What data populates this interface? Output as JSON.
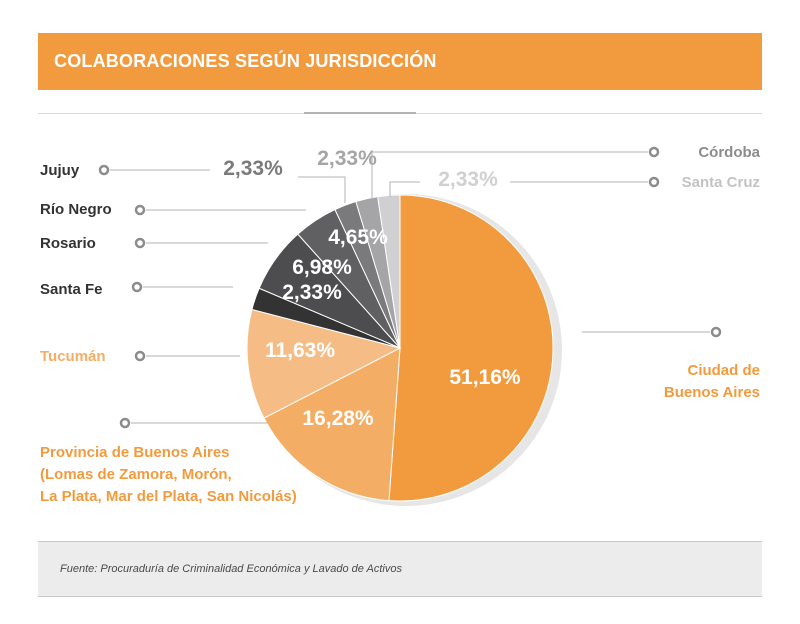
{
  "header": {
    "title": "COLABORACIONES SEGÚN JURISDICCIÓN"
  },
  "footer": {
    "source": "Fuente: Procuraduría de Criminalidad Económica y Lavado de Activos"
  },
  "colors": {
    "accent": "#f29b3e"
  },
  "chart_data": {
    "type": "pie",
    "title": "COLABORACIONES SEGÚN JURISDICCIÓN",
    "slices": [
      {
        "label_lines": [
          "Ciudad de",
          "Buenos Aires"
        ],
        "value": 51.16,
        "display": "51,16%",
        "color": "#f29b3e"
      },
      {
        "label_lines": [
          "Provincia de Buenos Aires",
          "(Lomas de Zamora, Morón,",
          "La Plata, Mar del Plata, San Nicolás)"
        ],
        "value": 16.28,
        "display": "16,28%",
        "color": "#f4ad64"
      },
      {
        "label_lines": [
          "Tucumán"
        ],
        "value": 11.63,
        "display": "11,63%",
        "color": "#f5bd85"
      },
      {
        "label_lines": [
          "Santa Fe"
        ],
        "value": 2.33,
        "display": "2,33%",
        "color": "#333333"
      },
      {
        "label_lines": [
          "Rosario"
        ],
        "value": 6.98,
        "display": "6,98%",
        "color": "#4d4d4f"
      },
      {
        "label_lines": [
          "Río Negro"
        ],
        "value": 4.65,
        "display": "4,65%",
        "color": "#606062"
      },
      {
        "label_lines": [
          "Jujuy"
        ],
        "value": 2.33,
        "display": "2,33%",
        "color": "#7a7a7c"
      },
      {
        "label_lines": [
          "Córdoba"
        ],
        "value": 2.33,
        "display": "2,33%",
        "color": "#a5a5a7"
      },
      {
        "label_lines": [
          "Santa Cruz"
        ],
        "value": 2.33,
        "display": "2,33%",
        "color": "#d0d0d2"
      }
    ]
  }
}
